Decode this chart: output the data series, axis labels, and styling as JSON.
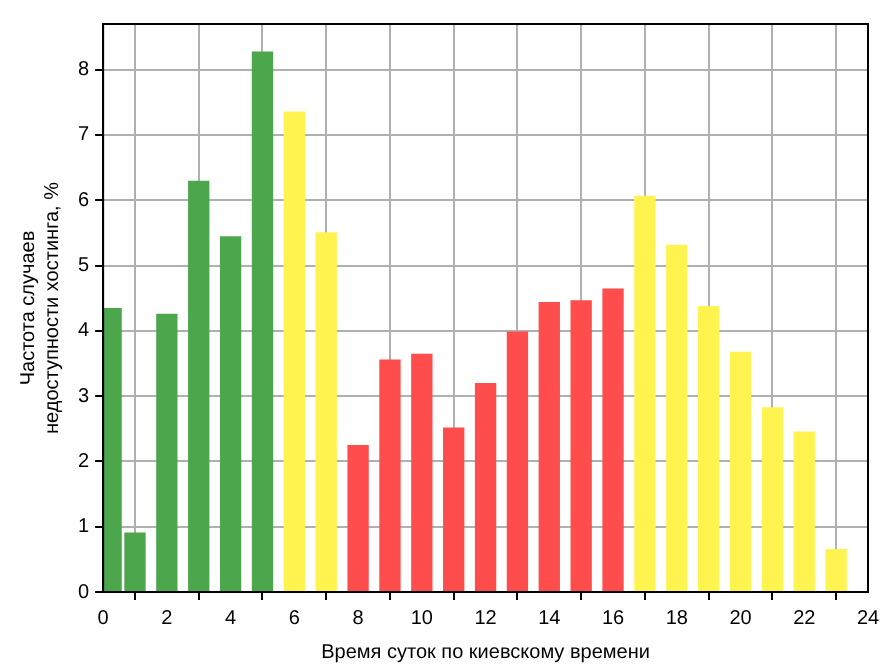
{
  "chart_data": {
    "type": "histogram",
    "xlabel": "Время суток по киевскому времени",
    "ylabel": "Частота случаев\nнедоступности хостинга, %",
    "bins": [
      0,
      0.5,
      1.5,
      2.5,
      3.5,
      4.5,
      5.5,
      6.5,
      7.5,
      8.5,
      9.5,
      10.5,
      11.5,
      12.5,
      13.5,
      14.5,
      15.5,
      16.5,
      17.5,
      18.5,
      19.5,
      20.5,
      21.5,
      22.5,
      23.5
    ],
    "values": [
      4.34,
      0.9,
      4.25,
      6.29,
      5.44,
      8.27,
      7.35,
      5.5,
      2.24,
      3.55,
      3.64,
      2.51,
      3.19,
      3.98,
      4.43,
      4.46,
      4.64,
      6.06,
      5.31,
      4.37,
      3.67,
      2.82,
      2.45,
      0.65
    ],
    "colors": [
      "#4ca64c",
      "#4ca64c",
      "#4ca64c",
      "#4ca64c",
      "#4ca64c",
      "#4ca64c",
      "#fff44f",
      "#fff44f",
      "#ff4c4c",
      "#ff4c4c",
      "#ff4c4c",
      "#ff4c4c",
      "#ff4c4c",
      "#ff4c4c",
      "#ff4c4c",
      "#ff4c4c",
      "#ff4c4c",
      "#fff44f",
      "#fff44f",
      "#fff44f",
      "#fff44f",
      "#fff44f",
      "#fff44f",
      "#fff44f"
    ],
    "xlim": [
      0,
      24
    ],
    "xticks": [
      0,
      2,
      4,
      6,
      8,
      10,
      12,
      14,
      16,
      18,
      20,
      22,
      24
    ],
    "ylim": [
      0,
      8.7
    ],
    "yticks": [
      0,
      1,
      2,
      3,
      4,
      5,
      6,
      7,
      8
    ],
    "grid": true
  }
}
